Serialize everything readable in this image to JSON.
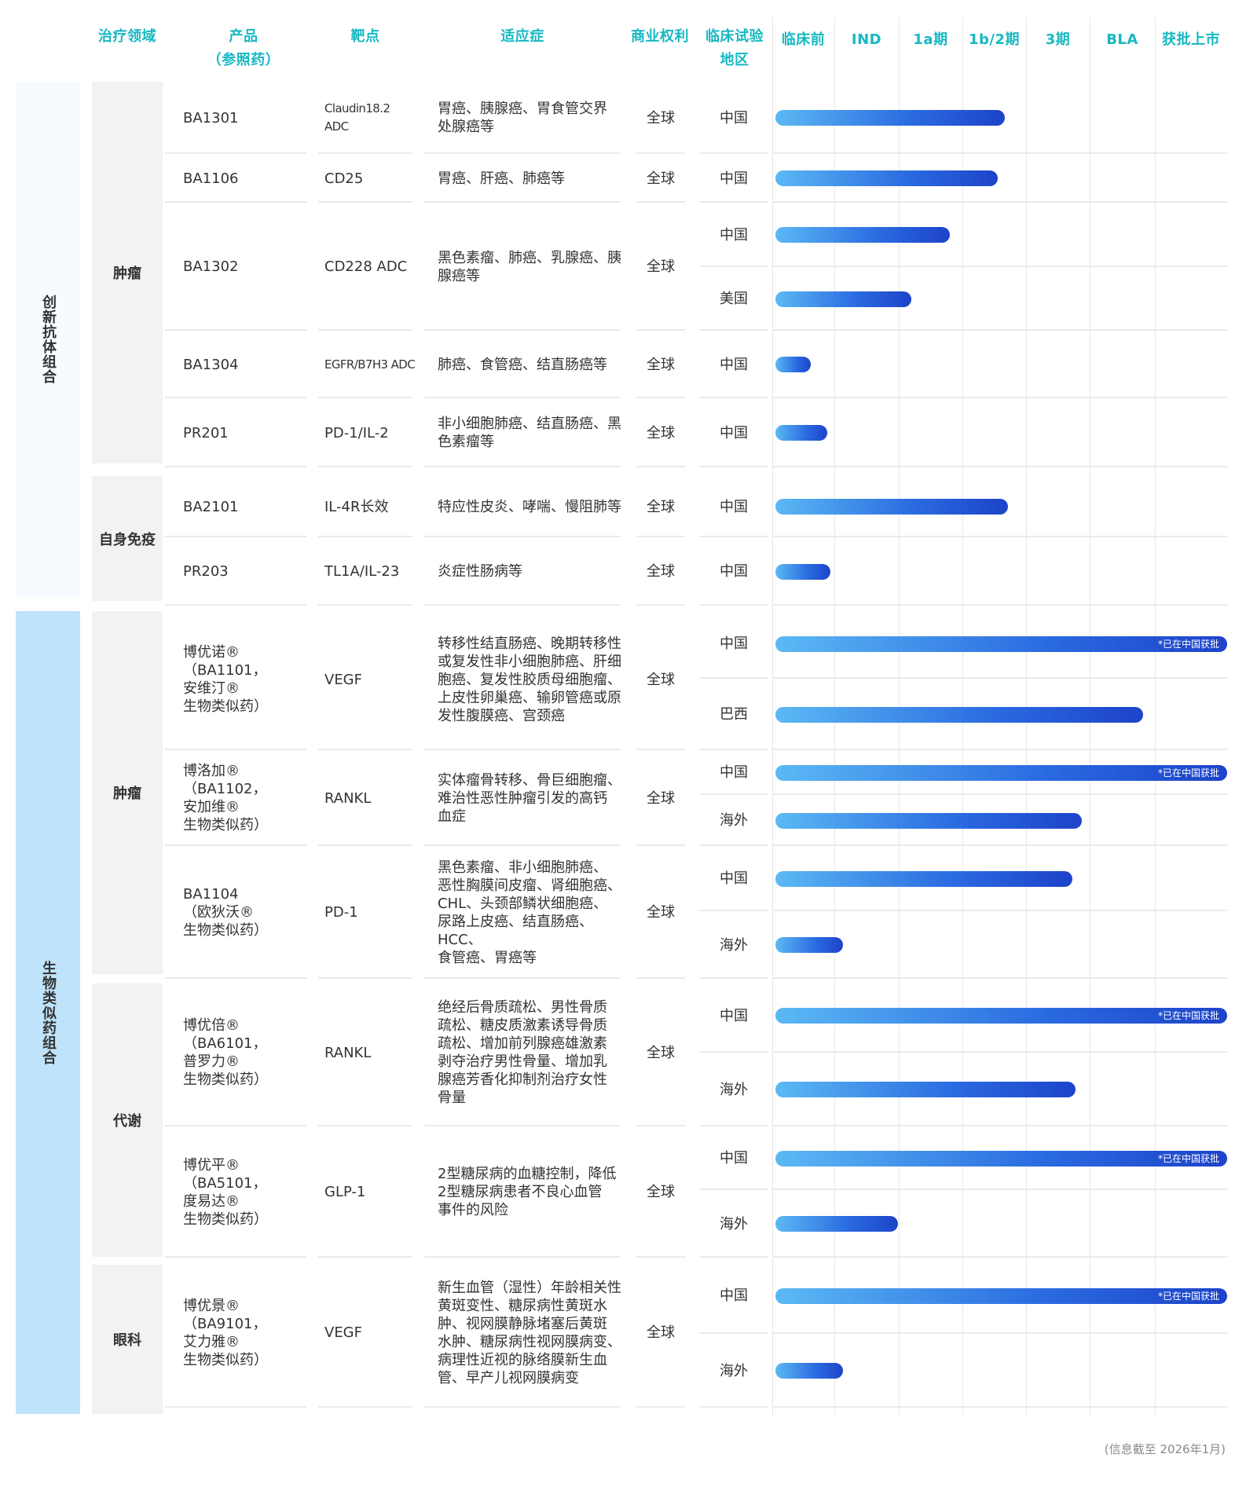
{
  "chart_data": {
    "type": "table",
    "headers": {
      "area": "治疗领域",
      "product": "产品\n（参照药）",
      "target": "靶点",
      "indication": "适应症",
      "rights": "商业权利",
      "region": "临床试验\n地区",
      "stages": [
        "临床前",
        "IND",
        "1a期",
        "1b/2期",
        "3期",
        "BLA",
        "获批上市"
      ]
    },
    "areas": [
      {
        "label": "创新抗体组合",
        "color": "#f7fbff",
        "subcategories": [
          {
            "label": "肿瘤",
            "products": [
              {
                "name": "BA1301",
                "target": "Claudin18.2\nADC",
                "indication": "胃癌、胰腺癌、胃食管交界\n处腺癌等",
                "rights": "全球",
                "trials": [
                  {
                    "region": "中国",
                    "progress": 3.55
                  }
                ]
              },
              {
                "name": "BA1106",
                "target": "CD25",
                "indication": "胃癌、肝癌、肺癌等",
                "rights": "全球",
                "trials": [
                  {
                    "region": "中国",
                    "progress": 3.45
                  }
                ]
              },
              {
                "name": "BA1302",
                "target": "CD228 ADC",
                "indication": "黑色素瘤、肺癌、乳腺癌、胰\n腺癌等",
                "rights": "全球",
                "trials": [
                  {
                    "region": "中国",
                    "progress": 2.7
                  },
                  {
                    "region": "美国",
                    "progress": 2.1
                  }
                ]
              },
              {
                "name": "BA1304",
                "target": "EGFR/B7H3 ADC",
                "indication": "肺癌、食管癌、结直肠癌等",
                "rights": "全球",
                "trials": [
                  {
                    "region": "中国",
                    "progress": 0.55
                  }
                ]
              },
              {
                "name": "PR201",
                "target": "PD-1/IL-2",
                "indication": "非小细胞肺癌、结直肠癌、黑\n色素瘤等",
                "rights": "全球",
                "trials": [
                  {
                    "region": "中国",
                    "progress": 0.8
                  }
                ]
              }
            ]
          },
          {
            "label": "自身免疫",
            "products": [
              {
                "name": "BA2101",
                "target": "IL-4R长效",
                "indication": "特应性皮炎、哮喘、慢阻肺等",
                "rights": "全球",
                "trials": [
                  {
                    "region": "中国",
                    "progress": 3.6
                  }
                ]
              },
              {
                "name": "PR203",
                "target": "TL1A/IL-23",
                "indication": "炎症性肠病等",
                "rights": "全球",
                "trials": [
                  {
                    "region": "中国",
                    "progress": 0.85
                  }
                ]
              }
            ]
          }
        ]
      },
      {
        "label": "生物类似药组合",
        "color": "#bfe3fb",
        "subcategories": [
          {
            "label": "肿瘤",
            "products": [
              {
                "name": "博优诺®\n（BA1101，\n安维汀®\n生物类似药）",
                "target": "VEGF",
                "indication": "转移性结直肠癌、晚期转移性\n或复发性非小细胞肺癌、肝细\n胞癌、复发性胶质母细胞瘤、\n上皮性卵巢癌、输卵管癌或原\n发性腹膜癌、宫颈癌",
                "rights": "全球",
                "trials": [
                  {
                    "region": "中国",
                    "progress": 7,
                    "note": "*已在中国获批"
                  },
                  {
                    "region": "巴西",
                    "progress": 5.7
                  }
                ]
              },
              {
                "name": "博洛加®\n（BA1102，\n安加维®\n生物类似药）",
                "target": "RANKL",
                "indication": "实体瘤骨转移、骨巨细胞瘤、\n难治性恶性肿瘤引发的高钙\n血症",
                "rights": "全球",
                "trials": [
                  {
                    "region": "中国",
                    "progress": 7,
                    "note": "*已在中国获批"
                  },
                  {
                    "region": "海外",
                    "progress": 4.75
                  }
                ]
              },
              {
                "name": "BA1104\n（欧狄沃®\n生物类似药）",
                "target": "PD-1",
                "indication": "黑色素瘤、非小细胞肺癌、\n恶性胸膜间皮瘤、肾细胞癌、\nCHL、头颈部鳞状细胞癌、\n尿路上皮癌、结直肠癌、HCC、\n食管癌、胃癌等",
                "rights": "全球",
                "trials": [
                  {
                    "region": "中国",
                    "progress": 4.6
                  },
                  {
                    "region": "海外",
                    "progress": 1.05
                  }
                ]
              }
            ]
          },
          {
            "label": "代谢",
            "products": [
              {
                "name": "博优倍®\n（BA6101，\n普罗力®\n生物类似药）",
                "target": "RANKL",
                "indication": "绝经后骨质疏松、男性骨质\n疏松、糖皮质激素诱导骨质\n疏松、增加前列腺癌雄激素\n剥夺治疗男性骨量、增加乳\n腺癌芳香化抑制剂治疗女性\n骨量",
                "rights": "全球",
                "trials": [
                  {
                    "region": "中国",
                    "progress": 7,
                    "note": "*已在中国获批"
                  },
                  {
                    "region": "海外",
                    "progress": 4.65
                  }
                ]
              },
              {
                "name": "博优平®\n（BA5101，\n度易达®\n生物类似药）",
                "target": "GLP-1",
                "indication": "2型糖尿病的血糖控制，降低\n2型糖尿病患者不良心血管\n事件的风险",
                "rights": "全球",
                "trials": [
                  {
                    "region": "中国",
                    "progress": 7,
                    "note": "*已在中国获批"
                  },
                  {
                    "region": "海外",
                    "progress": 1.9
                  }
                ]
              }
            ]
          },
          {
            "label": "眼科",
            "products": [
              {
                "name": "博优景®\n（BA9101，\n艾力雅®\n生物类似药）",
                "target": "VEGF",
                "indication": "新生血管（湿性）年龄相关性\n黄斑变性、糖尿病性黄斑水\n肿、视网膜静脉堵塞后黄斑\n水肿、糖尿病性视网膜病变、\n病理性近视的脉络膜新生血\n管、早产儿视网膜病变",
                "rights": "全球",
                "trials": [
                  {
                    "region": "中国",
                    "progress": 7,
                    "note": "*已在中国获批"
                  },
                  {
                    "region": "海外",
                    "progress": 1.05
                  }
                ]
              }
            ]
          }
        ]
      }
    ]
  },
  "footnote": "(信息截至 2026年1月)"
}
